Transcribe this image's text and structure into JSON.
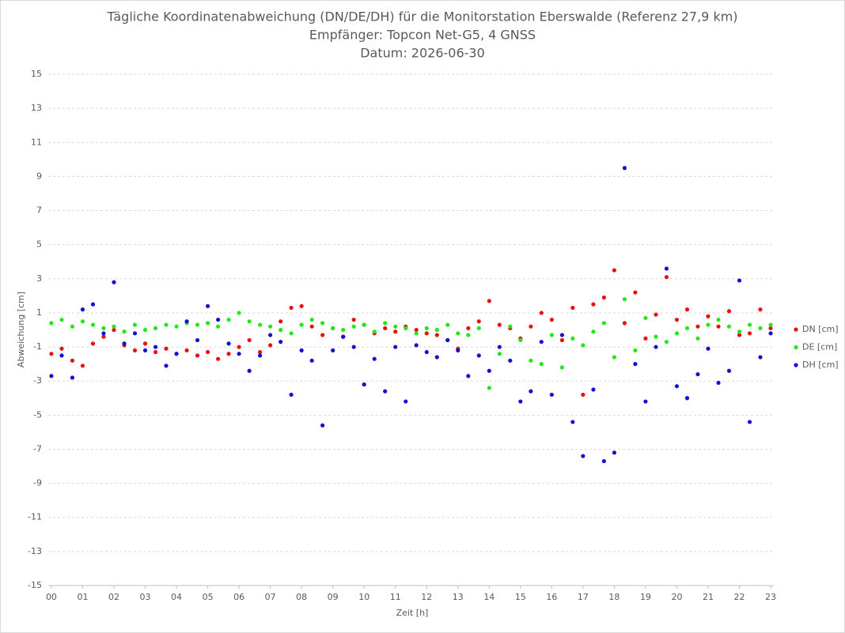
{
  "chart_data": {
    "type": "scatter",
    "title": "Tägliche Koordinatenabweichung (DN/DE/DH) für die Monitorstation Eberswalde (Referenz 27,9 km)",
    "subtitle": "Empfänger: Topcon Net-G5, 4 GNSS",
    "date": "Datum: 2026-06-30",
    "x_label": "Zeit [h]",
    "y_label": "Abweichung [cm]",
    "x": [
      0,
      0.33,
      0.67,
      1,
      1.33,
      1.67,
      2,
      2.33,
      2.67,
      3,
      3.33,
      3.67,
      4,
      4.33,
      4.67,
      5,
      5.33,
      5.67,
      6,
      6.33,
      6.67,
      7,
      7.33,
      7.67,
      8,
      8.33,
      8.67,
      9,
      9.33,
      9.67,
      10,
      10.33,
      10.67,
      11,
      11.33,
      11.67,
      12,
      12.33,
      12.67,
      13,
      13.33,
      13.67,
      14,
      14.33,
      14.67,
      15,
      15.33,
      15.67,
      16,
      16.33,
      16.67,
      17,
      17.33,
      17.67,
      18,
      18.33,
      18.67,
      19,
      19.33,
      19.67,
      20,
      20.33,
      20.67,
      21,
      21.33,
      21.67,
      22,
      22.33,
      22.67,
      23
    ],
    "series": [
      {
        "name": "DN [cm]",
        "color": "#e8120c",
        "values": [
          -1.4,
          -1.1,
          -1.8,
          -2.1,
          -0.8,
          -0.4,
          0,
          -0.9,
          -1.2,
          -0.8,
          -1.3,
          -1.1,
          -1.4,
          -1.2,
          -1.5,
          -1.3,
          -1.7,
          -1.4,
          -1.0,
          -0.6,
          -1.3,
          -0.9,
          0.5,
          1.3,
          1.4,
          0.2,
          -0.3,
          0.1,
          -0.4,
          0.6,
          0.3,
          -0.2,
          0.1,
          -0.1,
          0.2,
          0,
          -0.2,
          -0.3,
          -0.6,
          -1.1,
          0.1,
          0.5,
          1.7,
          0.3,
          0.1,
          -0.5,
          0.2,
          1.0,
          0.6,
          -0.6,
          1.3,
          -3.8,
          1.5,
          1.9,
          3.5,
          0.4,
          2.2,
          -0.5,
          0.9,
          3.1,
          0.6,
          1.2,
          0.2,
          0.8,
          0.2,
          1.1,
          -0.3,
          -0.2,
          1.2,
          0.1
        ]
      },
      {
        "name": "DE [cm]",
        "color": "#22e81a",
        "values": [
          0.4,
          0.6,
          0.2,
          0.5,
          0.3,
          0.1,
          0.2,
          -0.1,
          0.3,
          0,
          0.1,
          0.3,
          0.2,
          0.4,
          0.3,
          0.4,
          0.2,
          0.6,
          1.0,
          0.5,
          0.3,
          0.2,
          0,
          -0.2,
          0.3,
          0.6,
          0.4,
          0.1,
          0,
          0.2,
          0.3,
          -0.1,
          0.4,
          0.2,
          0.1,
          -0.2,
          0.1,
          0,
          0.3,
          -0.2,
          -0.3,
          0.1,
          -3.4,
          -1.4,
          0.2,
          -0.6,
          -1.8,
          -2.0,
          -0.3,
          -2.2,
          -0.5,
          -0.9,
          -0.1,
          0.4,
          -1.6,
          1.8,
          -1.2,
          0.7,
          -0.4,
          -0.7,
          -0.2,
          0.1,
          -0.5,
          0.3,
          0.6,
          0.2,
          -0.1,
          0.3,
          0.1,
          0.3
        ]
      },
      {
        "name": "DH [cm]",
        "color": "#1212d2",
        "values": [
          -2.7,
          -1.5,
          -2.8,
          1.2,
          1.5,
          -0.2,
          2.8,
          -0.8,
          -0.2,
          -1.2,
          -1.0,
          -2.1,
          -1.4,
          0.5,
          -0.6,
          1.4,
          0.6,
          -0.8,
          -1.4,
          -2.4,
          -1.5,
          -0.3,
          -0.7,
          -3.8,
          -1.2,
          -1.8,
          -5.6,
          -1.2,
          -0.4,
          -1.0,
          -3.2,
          -1.7,
          -3.6,
          -1.0,
          -4.2,
          -0.9,
          -1.3,
          -1.6,
          -0.6,
          -1.2,
          -2.7,
          -1.5,
          -2.4,
          -1.0,
          -1.8,
          -4.2,
          -3.6,
          -0.7,
          -3.8,
          -0.3,
          -5.4,
          -7.4,
          -3.5,
          -7.7,
          -7.2,
          9.5,
          -2.0,
          -4.2,
          -1.0,
          3.6,
          -3.3,
          -4.0,
          -2.6,
          -1.1,
          -3.1,
          -2.4,
          2.9,
          -5.4,
          -1.6,
          -0.2
        ]
      }
    ],
    "xlim": [
      -0.1,
      23.1
    ],
    "ylim": [
      -15,
      15
    ],
    "xticks": [
      {
        "value": 0,
        "label": "00"
      },
      {
        "value": 1,
        "label": "01"
      },
      {
        "value": 2,
        "label": "02"
      },
      {
        "value": 3,
        "label": "03"
      },
      {
        "value": 4,
        "label": "04"
      },
      {
        "value": 5,
        "label": "05"
      },
      {
        "value": 6,
        "label": "06"
      },
      {
        "value": 7,
        "label": "07"
      },
      {
        "value": 8,
        "label": "08"
      },
      {
        "value": 9,
        "label": "09"
      },
      10,
      11,
      12,
      13,
      14,
      15,
      16,
      17,
      18,
      19,
      20,
      21,
      22,
      23
    ],
    "yticks": [
      -15,
      -13,
      -11,
      -9,
      -7,
      -5,
      -3,
      -1,
      1,
      3,
      5,
      7,
      9,
      11,
      13,
      15
    ],
    "grid": true,
    "legend": "right"
  }
}
